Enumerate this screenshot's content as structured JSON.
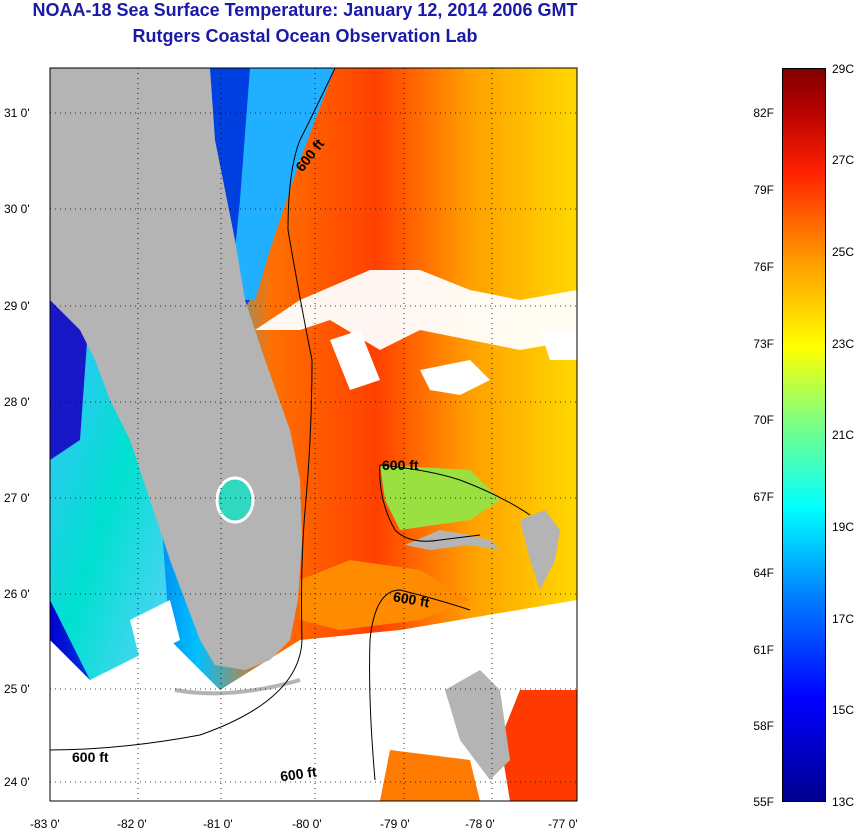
{
  "header": {
    "title": "NOAA-18 Sea Surface Temperature:  January 12, 2014 2006 GMT",
    "subtitle": "Rutgers Coastal Ocean Observation Lab"
  },
  "map": {
    "lon_ticks": [
      "-83 0'",
      "-82 0'",
      "-81 0'",
      "-80 0'",
      "-79 0'",
      "-78 0'",
      "-77 0'"
    ],
    "lat_ticks": [
      "31 0'",
      "30 0'",
      "29 0'",
      "28 0'",
      "27 0'",
      "26 0'",
      "25 0'",
      "24 0'"
    ],
    "contour_labels": [
      "600 ft",
      "600 ft",
      "600 ft",
      "600 ft",
      "600 ft"
    ],
    "colors": {
      "land": "#b4b4b4",
      "cloud": "#ffffff",
      "warm": "#ff6a00",
      "cool": "#00c8ff"
    }
  },
  "colorbar": {
    "fahrenheit": [
      "82F",
      "79F",
      "76F",
      "73F",
      "70F",
      "67F",
      "64F",
      "61F",
      "58F",
      "55F"
    ],
    "celsius": [
      "29C",
      "27C",
      "25C",
      "23C",
      "21C",
      "19C",
      "17C",
      "15C",
      "13C"
    ]
  }
}
